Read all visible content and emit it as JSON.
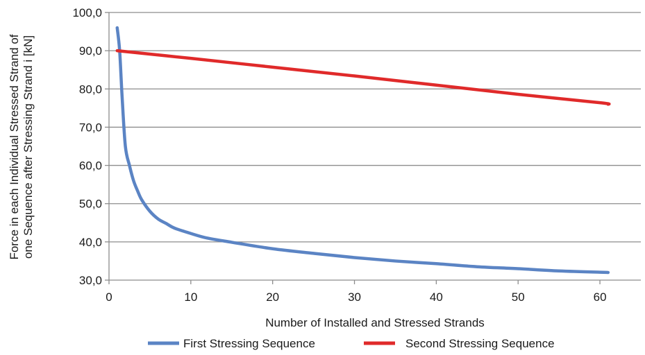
{
  "chart_data": {
    "type": "line",
    "xlabel": "Number of Installed and Stressed Strands",
    "ylabel_lines": [
      "Force in each Individual Stressed Strand of",
      "one Sequence after Stressing Strand i [kN]"
    ],
    "xlim": [
      0,
      65
    ],
    "ylim": [
      30,
      100
    ],
    "x_ticks": [
      0,
      10,
      20,
      30,
      40,
      50,
      60
    ],
    "x_tick_labels": [
      "0",
      "10",
      "20",
      "30",
      "40",
      "50",
      "60"
    ],
    "y_ticks": [
      30,
      40,
      50,
      60,
      70,
      80,
      90,
      100
    ],
    "y_tick_labels": [
      "30,0",
      "40,0",
      "50,0",
      "60,0",
      "70,0",
      "80,0",
      "90,0",
      "100,0"
    ],
    "grid": "horizontal",
    "legend_position": "bottom",
    "series": [
      {
        "name": "First Stressing Sequence",
        "color": "#5b84c4",
        "x": [
          1,
          1.3,
          1.6,
          2,
          2.5,
          3,
          3.5,
          4,
          5,
          6,
          7,
          8,
          10,
          12,
          15,
          20,
          25,
          30,
          35,
          40,
          45,
          50,
          55,
          61
        ],
        "y": [
          96,
          90,
          78,
          65,
          60,
          56,
          53.3,
          51,
          48,
          46,
          44.8,
          43.6,
          42.2,
          41,
          39.9,
          38.2,
          37,
          35.9,
          35,
          34.3,
          33.5,
          33,
          32.4,
          32
        ]
      },
      {
        "name": "Second Stressing Sequence",
        "color": "#e02a2a",
        "x": [
          1,
          10,
          20,
          30,
          40,
          50,
          60,
          61
        ],
        "y": [
          90,
          88,
          85.7,
          83.4,
          81,
          78.6,
          76.4,
          76
        ]
      }
    ]
  }
}
